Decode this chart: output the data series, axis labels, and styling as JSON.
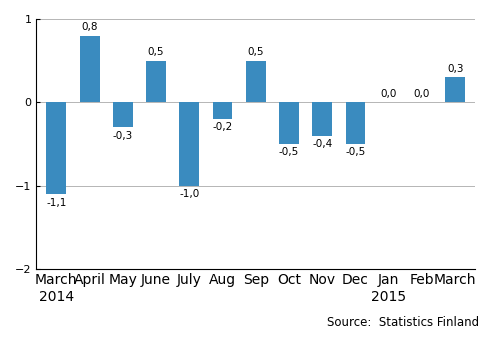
{
  "categories": [
    "March\n2014",
    "April",
    "May",
    "June",
    "July",
    "Aug",
    "Sep",
    "Oct",
    "Nov",
    "Dec",
    "Jan\n2015",
    "Feb",
    "March"
  ],
  "values": [
    -1.1,
    0.8,
    -0.3,
    0.5,
    -1.0,
    -0.2,
    0.5,
    -0.5,
    -0.4,
    -0.5,
    0.0,
    0.0,
    0.3
  ],
  "labels": [
    "-1,1",
    "0,8",
    "-0,3",
    "0,5",
    "-1,0",
    "-0,2",
    "0,5",
    "-0,5",
    "-0,4",
    "-0,5",
    "0,0",
    "0,0",
    "0,3"
  ],
  "bar_color": "#3a8bbf",
  "ylim": [
    -2,
    1
  ],
  "yticks": [
    -2,
    -1,
    0,
    1
  ],
  "source_text": "Source:  Statistics Finland",
  "label_fontsize": 7.5,
  "axis_fontsize": 8,
  "source_fontsize": 8.5,
  "bar_width": 0.6
}
